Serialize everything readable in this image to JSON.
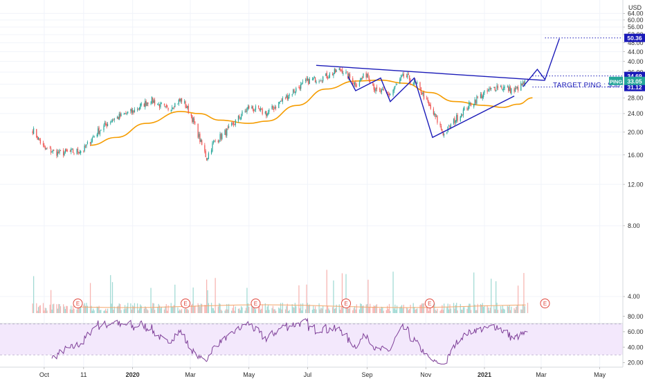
{
  "chart_data": {
    "type": "candlestick",
    "symbol": "PING",
    "currency": "USD",
    "price_axis": {
      "scale": "log",
      "ticks": [
        4.0,
        8.0,
        12.0,
        16.0,
        20.0,
        24.0,
        28.0,
        32.0,
        36.0,
        40.0,
        44.0,
        48.0,
        52.0,
        56.0,
        60.0,
        64.0
      ],
      "tick_labels": [
        "4.00",
        "8.00",
        "12.00",
        "16.00",
        "20.00",
        "24.00",
        "28.00",
        "32.00",
        "36.00",
        "40.00",
        "44.00",
        "48.00",
        "52.00",
        "56.00",
        "60.00",
        "64.00"
      ],
      "range": [
        3.4,
        72
      ]
    },
    "rsi_axis": {
      "ticks": [
        20,
        40,
        60,
        80
      ],
      "tick_labels": [
        "20.00",
        "40.00",
        "60.00",
        "80.00"
      ],
      "range": [
        14,
        86
      ],
      "band": [
        30,
        70
      ]
    },
    "time_axis": {
      "labels": [
        "Oct",
        "11",
        "2020",
        "Mar",
        "May",
        "Jul",
        "Sep",
        "Nov",
        "2021",
        "Mar",
        "May"
      ],
      "bold_labels": [
        "2020",
        "2021"
      ],
      "label_dates": [
        "2019-10-01",
        "2019-11-11",
        "2020-01-01",
        "2020-03-01",
        "2020-05-01",
        "2020-07-01",
        "2020-09-01",
        "2020-11-01",
        "2021-01-01",
        "2021-03-01",
        "2021-05-01"
      ]
    },
    "price_series": {
      "name": "PING",
      "anchors": [
        [
          "2019-09-19",
          20.5
        ],
        [
          "2019-09-24",
          19.0
        ],
        [
          "2019-10-01",
          17.0
        ],
        [
          "2019-10-15",
          16.3
        ],
        [
          "2019-11-01",
          16.5
        ],
        [
          "2019-11-11",
          16.8
        ],
        [
          "2019-11-25",
          20.0
        ],
        [
          "2019-12-10",
          22.5
        ],
        [
          "2020-01-01",
          24.5
        ],
        [
          "2020-01-20",
          27.5
        ],
        [
          "2020-02-05",
          25.0
        ],
        [
          "2020-02-21",
          27.5
        ],
        [
          "2020-03-01",
          24.0
        ],
        [
          "2020-03-12",
          18.0
        ],
        [
          "2020-03-18",
          15.5
        ],
        [
          "2020-03-25",
          18.0
        ],
        [
          "2020-04-10",
          20.5
        ],
        [
          "2020-05-01",
          25.5
        ],
        [
          "2020-05-20",
          24.0
        ],
        [
          "2020-06-10",
          28.5
        ],
        [
          "2020-07-01",
          33.0
        ],
        [
          "2020-07-20",
          34.5
        ],
        [
          "2020-08-05",
          37.0
        ],
        [
          "2020-08-20",
          32.0
        ],
        [
          "2020-09-01",
          35.5
        ],
        [
          "2020-09-10",
          30.0
        ],
        [
          "2020-09-25",
          29.0
        ],
        [
          "2020-10-10",
          35.0
        ],
        [
          "2020-10-25",
          31.0
        ],
        [
          "2020-11-05",
          25.5
        ],
        [
          "2020-11-20",
          19.5
        ],
        [
          "2020-12-05",
          23.5
        ],
        [
          "2020-12-25",
          28.0
        ],
        [
          "2021-01-15",
          31.5
        ],
        [
          "2021-02-01",
          30.0
        ],
        [
          "2021-02-15",
          33.05
        ]
      ]
    },
    "moving_average": {
      "color": "#f59c00",
      "points": [
        [
          "2019-11-18",
          17.6
        ],
        [
          "2019-12-15",
          19.0
        ],
        [
          "2020-01-15",
          21.8
        ],
        [
          "2020-02-20",
          24.5
        ],
        [
          "2020-03-10",
          24.0
        ],
        [
          "2020-04-01",
          22.5
        ],
        [
          "2020-05-01",
          21.8
        ],
        [
          "2020-05-20",
          22.3
        ],
        [
          "2020-06-20",
          26.0
        ],
        [
          "2020-07-20",
          30.5
        ],
        [
          "2020-08-20",
          33.0
        ],
        [
          "2020-09-15",
          33.3
        ],
        [
          "2020-10-10",
          32.3
        ],
        [
          "2020-11-05",
          29.5
        ],
        [
          "2020-12-01",
          27.0
        ],
        [
          "2021-01-01",
          26.0
        ],
        [
          "2021-01-20",
          25.5
        ],
        [
          "2021-02-05",
          26.3
        ],
        [
          "2021-02-20",
          28.0
        ]
      ]
    },
    "pattern_lines": {
      "color": "#1a1ab8",
      "neckline": [
        [
          "2020-07-10",
          38.5
        ],
        [
          "2021-03-05",
          33.2
        ]
      ],
      "zigzag": [
        [
          "2020-08-12",
          34.5
        ],
        [
          "2020-08-20",
          30.0
        ],
        [
          "2020-09-15",
          34.0
        ],
        [
          "2020-09-25",
          27.0
        ],
        [
          "2020-10-20",
          34.0
        ],
        [
          "2020-11-08",
          19.0
        ],
        [
          "2021-02-01",
          28.5
        ]
      ],
      "projection": [
        [
          "2021-02-10",
          31.2
        ],
        [
          "2021-02-25",
          37.0
        ],
        [
          "2021-03-05",
          33.5
        ],
        [
          "2021-03-20",
          50.0
        ]
      ]
    },
    "levels": [
      {
        "label": "50.36",
        "value": 50.36,
        "from": "2021-03-05"
      },
      {
        "label": "34.69",
        "value": 34.69,
        "from": "2021-02-20"
      },
      {
        "label": "31.12",
        "value": 31.12,
        "from": "2021-02-20"
      }
    ],
    "last_price": {
      "symbol": "PING",
      "label": "PING",
      "value_label": "33.05",
      "value": 33.05
    },
    "annotation": {
      "text": "TARGET PING : $50"
    },
    "earnings_markers": {
      "label": "E",
      "dates": [
        "2019-11-05",
        "2020-02-25",
        "2020-05-08",
        "2020-08-10",
        "2020-11-05",
        "2021-03-05"
      ]
    },
    "colors": {
      "up": "#26a69a",
      "down": "#ef5350",
      "volume_up": "#9fd9d3",
      "volume_down": "#f7b3b0",
      "rsi_line": "#7e3f98",
      "rsi_band_fill": "#f3e8fc",
      "level_badge": "#1a1ab8",
      "last_price_badge": "#26a69a"
    }
  }
}
